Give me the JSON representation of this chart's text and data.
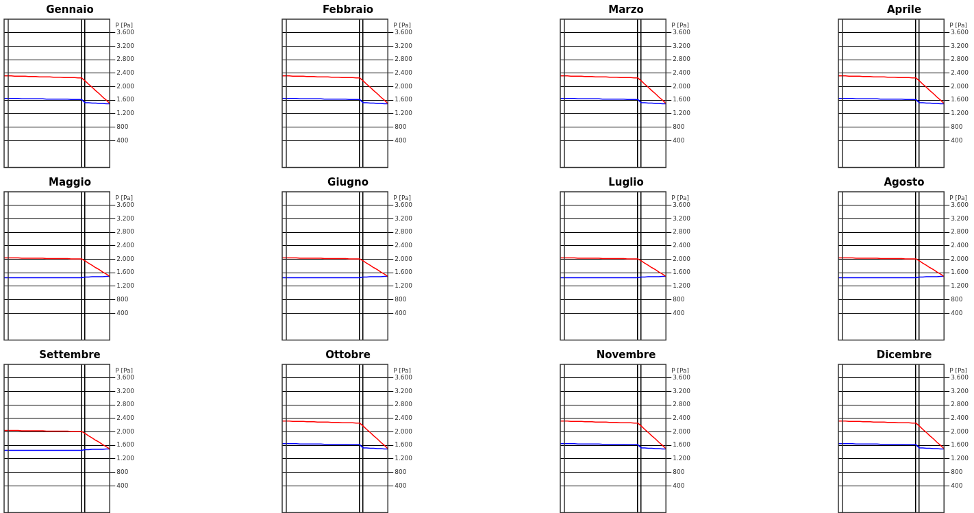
{
  "chart_data": [
    {
      "type": "line",
      "title": "Gennaio",
      "ylabel": "P [Pa]",
      "categories": [
        null,
        null,
        null,
        null,
        null,
        null,
        null,
        null,
        null,
        null,
        null,
        null,
        null,
        null,
        null,
        null,
        null,
        null,
        null,
        null,
        null,
        null,
        null,
        null,
        null,
        null,
        null,
        null,
        null,
        null,
        null
      ],
      "ylim": [
        -400,
        4000
      ],
      "yticks": [
        {
          "value": 400,
          "label": "400"
        },
        {
          "value": 800,
          "label": "800"
        },
        {
          "value": 1200,
          "label": "1.200"
        },
        {
          "value": 1600,
          "label": "1.600"
        },
        {
          "value": 2000,
          "label": "2.000"
        },
        {
          "value": 2400,
          "label": "2.400"
        },
        {
          "value": 2800,
          "label": "2.800"
        },
        {
          "value": 3200,
          "label": "3.200"
        },
        {
          "value": 3600,
          "label": "3.600"
        }
      ],
      "grid": true,
      "tick_labels": "y",
      "series": [
        {
          "color": "#ff0000",
          "values": [
            2320,
            2320,
            2320,
            2310,
            2310,
            2310,
            2310,
            2300,
            2300,
            2300,
            2290,
            2290,
            2290,
            2290,
            2280,
            2280,
            2280,
            2270,
            2270,
            2270,
            2270,
            2260,
            2260,
            2170,
            2070,
            1980,
            1880,
            1790,
            1690,
            1600,
            1500
          ]
        },
        {
          "color": "#0000ff",
          "values": [
            1650,
            1650,
            1650,
            1650,
            1650,
            1640,
            1640,
            1640,
            1640,
            1640,
            1640,
            1640,
            1630,
            1630,
            1630,
            1630,
            1630,
            1630,
            1630,
            1620,
            1620,
            1620,
            1620,
            1520,
            1520,
            1510,
            1510,
            1500,
            1500,
            1490,
            1490
          ]
        }
      ]
    },
    {
      "type": "line",
      "title": "Febbraio",
      "ylabel": "P [Pa]",
      "categories": [
        null,
        null,
        null,
        null,
        null,
        null,
        null,
        null,
        null,
        null,
        null,
        null,
        null,
        null,
        null,
        null,
        null,
        null,
        null,
        null,
        null,
        null,
        null,
        null,
        null,
        null,
        null,
        null,
        null,
        null,
        null
      ],
      "ylim": [
        -400,
        4000
      ],
      "yticks": [
        {
          "value": 400,
          "label": "400"
        },
        {
          "value": 800,
          "label": "800"
        },
        {
          "value": 1200,
          "label": "1.200"
        },
        {
          "value": 1600,
          "label": "1.600"
        },
        {
          "value": 2000,
          "label": "2.000"
        },
        {
          "value": 2400,
          "label": "2.400"
        },
        {
          "value": 2800,
          "label": "2.800"
        },
        {
          "value": 3200,
          "label": "3.200"
        },
        {
          "value": 3600,
          "label": "3.600"
        }
      ],
      "grid": true,
      "tick_labels": "y",
      "series": [
        {
          "color": "#ff0000",
          "values": [
            2320,
            2320,
            2320,
            2310,
            2310,
            2310,
            2310,
            2300,
            2300,
            2300,
            2290,
            2290,
            2290,
            2290,
            2280,
            2280,
            2280,
            2270,
            2270,
            2270,
            2270,
            2260,
            2260,
            2170,
            2070,
            1980,
            1880,
            1790,
            1690,
            1600,
            1500
          ]
        },
        {
          "color": "#0000ff",
          "values": [
            1650,
            1650,
            1650,
            1650,
            1650,
            1640,
            1640,
            1640,
            1640,
            1640,
            1640,
            1640,
            1630,
            1630,
            1630,
            1630,
            1630,
            1630,
            1630,
            1620,
            1620,
            1620,
            1620,
            1520,
            1520,
            1510,
            1510,
            1500,
            1500,
            1490,
            1490
          ]
        }
      ]
    },
    {
      "type": "line",
      "title": "Marzo",
      "ylabel": "P [Pa]",
      "categories": [
        null,
        null,
        null,
        null,
        null,
        null,
        null,
        null,
        null,
        null,
        null,
        null,
        null,
        null,
        null,
        null,
        null,
        null,
        null,
        null,
        null,
        null,
        null,
        null,
        null,
        null,
        null,
        null,
        null,
        null,
        null
      ],
      "ylim": [
        -400,
        4000
      ],
      "yticks": [
        {
          "value": 400,
          "label": "400"
        },
        {
          "value": 800,
          "label": "800"
        },
        {
          "value": 1200,
          "label": "1.200"
        },
        {
          "value": 1600,
          "label": "1.600"
        },
        {
          "value": 2000,
          "label": "2.000"
        },
        {
          "value": 2400,
          "label": "2.400"
        },
        {
          "value": 2800,
          "label": "2.800"
        },
        {
          "value": 3200,
          "label": "3.200"
        },
        {
          "value": 3600,
          "label": "3.600"
        }
      ],
      "grid": true,
      "tick_labels": "y",
      "series": [
        {
          "color": "#ff0000",
          "values": [
            2320,
            2320,
            2320,
            2310,
            2310,
            2310,
            2310,
            2300,
            2300,
            2300,
            2290,
            2290,
            2290,
            2290,
            2280,
            2280,
            2280,
            2270,
            2270,
            2270,
            2270,
            2260,
            2260,
            2170,
            2070,
            1980,
            1880,
            1790,
            1690,
            1600,
            1500
          ]
        },
        {
          "color": "#0000ff",
          "values": [
            1650,
            1650,
            1650,
            1650,
            1650,
            1640,
            1640,
            1640,
            1640,
            1640,
            1640,
            1640,
            1630,
            1630,
            1630,
            1630,
            1630,
            1630,
            1630,
            1620,
            1620,
            1620,
            1620,
            1520,
            1520,
            1510,
            1510,
            1500,
            1500,
            1490,
            1490
          ]
        }
      ]
    },
    {
      "type": "line",
      "title": "Aprile",
      "ylabel": "P [Pa]",
      "categories": [
        null,
        null,
        null,
        null,
        null,
        null,
        null,
        null,
        null,
        null,
        null,
        null,
        null,
        null,
        null,
        null,
        null,
        null,
        null,
        null,
        null,
        null,
        null,
        null,
        null,
        null,
        null,
        null,
        null,
        null,
        null
      ],
      "ylim": [
        -400,
        4000
      ],
      "yticks": [
        {
          "value": 400,
          "label": "400"
        },
        {
          "value": 800,
          "label": "800"
        },
        {
          "value": 1200,
          "label": "1.200"
        },
        {
          "value": 1600,
          "label": "1.600"
        },
        {
          "value": 2000,
          "label": "2.000"
        },
        {
          "value": 2400,
          "label": "2.400"
        },
        {
          "value": 2800,
          "label": "2.800"
        },
        {
          "value": 3200,
          "label": "3.200"
        },
        {
          "value": 3600,
          "label": "3.600"
        }
      ],
      "grid": true,
      "tick_labels": "y",
      "series": [
        {
          "color": "#ff0000",
          "values": [
            2320,
            2320,
            2320,
            2310,
            2310,
            2310,
            2310,
            2300,
            2300,
            2300,
            2290,
            2290,
            2290,
            2290,
            2280,
            2280,
            2280,
            2270,
            2270,
            2270,
            2270,
            2260,
            2260,
            2170,
            2070,
            1980,
            1880,
            1790,
            1690,
            1600,
            1500
          ]
        },
        {
          "color": "#0000ff",
          "values": [
            1650,
            1650,
            1650,
            1650,
            1650,
            1640,
            1640,
            1640,
            1640,
            1640,
            1640,
            1640,
            1630,
            1630,
            1630,
            1630,
            1630,
            1630,
            1630,
            1620,
            1620,
            1620,
            1620,
            1520,
            1520,
            1510,
            1510,
            1500,
            1500,
            1490,
            1490
          ]
        }
      ]
    },
    {
      "type": "line",
      "title": "Maggio",
      "ylabel": "P [Pa]",
      "categories": [
        null,
        null,
        null,
        null,
        null,
        null,
        null,
        null,
        null,
        null,
        null,
        null,
        null,
        null,
        null,
        null,
        null,
        null,
        null,
        null,
        null,
        null,
        null,
        null,
        null,
        null,
        null,
        null,
        null,
        null,
        null
      ],
      "ylim": [
        -400,
        4000
      ],
      "yticks": [
        {
          "value": 400,
          "label": "400"
        },
        {
          "value": 800,
          "label": "800"
        },
        {
          "value": 1200,
          "label": "1.200"
        },
        {
          "value": 1600,
          "label": "1.600"
        },
        {
          "value": 2000,
          "label": "2.000"
        },
        {
          "value": 2400,
          "label": "2.400"
        },
        {
          "value": 2800,
          "label": "2.800"
        },
        {
          "value": 3200,
          "label": "3.200"
        },
        {
          "value": 3600,
          "label": "3.600"
        }
      ],
      "grid": true,
      "tick_labels": "y",
      "series": [
        {
          "color": "#ff0000",
          "values": [
            2040,
            2040,
            2040,
            2040,
            2040,
            2030,
            2030,
            2030,
            2030,
            2030,
            2030,
            2030,
            2020,
            2020,
            2020,
            2020,
            2020,
            2020,
            2020,
            2010,
            2010,
            2010,
            2010,
            1950,
            1880,
            1820,
            1750,
            1690,
            1620,
            1560,
            1490
          ]
        },
        {
          "color": "#0000ff",
          "values": [
            1450,
            1450,
            1450,
            1450,
            1450,
            1450,
            1450,
            1450,
            1450,
            1450,
            1450,
            1450,
            1450,
            1450,
            1450,
            1450,
            1450,
            1450,
            1450,
            1450,
            1450,
            1450,
            1450,
            1470,
            1470,
            1480,
            1480,
            1480,
            1480,
            1490,
            1490
          ]
        }
      ]
    },
    {
      "type": "line",
      "title": "Giugno",
      "ylabel": "P [Pa]",
      "categories": [
        null,
        null,
        null,
        null,
        null,
        null,
        null,
        null,
        null,
        null,
        null,
        null,
        null,
        null,
        null,
        null,
        null,
        null,
        null,
        null,
        null,
        null,
        null,
        null,
        null,
        null,
        null,
        null,
        null,
        null,
        null
      ],
      "ylim": [
        -400,
        4000
      ],
      "yticks": [
        {
          "value": 400,
          "label": "400"
        },
        {
          "value": 800,
          "label": "800"
        },
        {
          "value": 1200,
          "label": "1.200"
        },
        {
          "value": 1600,
          "label": "1.600"
        },
        {
          "value": 2000,
          "label": "2.000"
        },
        {
          "value": 2400,
          "label": "2.400"
        },
        {
          "value": 2800,
          "label": "2.800"
        },
        {
          "value": 3200,
          "label": "3.200"
        },
        {
          "value": 3600,
          "label": "3.600"
        }
      ],
      "grid": true,
      "tick_labels": "y",
      "series": [
        {
          "color": "#ff0000",
          "values": [
            2040,
            2040,
            2040,
            2040,
            2040,
            2030,
            2030,
            2030,
            2030,
            2030,
            2030,
            2030,
            2020,
            2020,
            2020,
            2020,
            2020,
            2020,
            2020,
            2010,
            2010,
            2010,
            2010,
            1950,
            1880,
            1820,
            1750,
            1690,
            1620,
            1560,
            1490
          ]
        },
        {
          "color": "#0000ff",
          "values": [
            1450,
            1450,
            1450,
            1450,
            1450,
            1450,
            1450,
            1450,
            1450,
            1450,
            1450,
            1450,
            1450,
            1450,
            1450,
            1450,
            1450,
            1450,
            1450,
            1450,
            1450,
            1450,
            1450,
            1470,
            1470,
            1480,
            1480,
            1480,
            1480,
            1490,
            1490
          ]
        }
      ]
    },
    {
      "type": "line",
      "title": "Luglio",
      "ylabel": "P [Pa]",
      "categories": [
        null,
        null,
        null,
        null,
        null,
        null,
        null,
        null,
        null,
        null,
        null,
        null,
        null,
        null,
        null,
        null,
        null,
        null,
        null,
        null,
        null,
        null,
        null,
        null,
        null,
        null,
        null,
        null,
        null,
        null,
        null
      ],
      "ylim": [
        -400,
        4000
      ],
      "yticks": [
        {
          "value": 400,
          "label": "400"
        },
        {
          "value": 800,
          "label": "800"
        },
        {
          "value": 1200,
          "label": "1.200"
        },
        {
          "value": 1600,
          "label": "1.600"
        },
        {
          "value": 2000,
          "label": "2.000"
        },
        {
          "value": 2400,
          "label": "2.400"
        },
        {
          "value": 2800,
          "label": "2.800"
        },
        {
          "value": 3200,
          "label": "3.200"
        },
        {
          "value": 3600,
          "label": "3.600"
        }
      ],
      "grid": true,
      "tick_labels": "y",
      "series": [
        {
          "color": "#ff0000",
          "values": [
            2040,
            2040,
            2040,
            2040,
            2040,
            2030,
            2030,
            2030,
            2030,
            2030,
            2030,
            2030,
            2020,
            2020,
            2020,
            2020,
            2020,
            2020,
            2020,
            2010,
            2010,
            2010,
            2010,
            1950,
            1880,
            1820,
            1750,
            1690,
            1620,
            1560,
            1490
          ]
        },
        {
          "color": "#0000ff",
          "values": [
            1450,
            1450,
            1450,
            1450,
            1450,
            1450,
            1450,
            1450,
            1450,
            1450,
            1450,
            1450,
            1450,
            1450,
            1450,
            1450,
            1450,
            1450,
            1450,
            1450,
            1450,
            1450,
            1450,
            1470,
            1470,
            1480,
            1480,
            1480,
            1480,
            1490,
            1490
          ]
        }
      ]
    },
    {
      "type": "line",
      "title": "Agosto",
      "ylabel": "P [Pa]",
      "categories": [
        null,
        null,
        null,
        null,
        null,
        null,
        null,
        null,
        null,
        null,
        null,
        null,
        null,
        null,
        null,
        null,
        null,
        null,
        null,
        null,
        null,
        null,
        null,
        null,
        null,
        null,
        null,
        null,
        null,
        null,
        null
      ],
      "ylim": [
        -400,
        4000
      ],
      "yticks": [
        {
          "value": 400,
          "label": "400"
        },
        {
          "value": 800,
          "label": "800"
        },
        {
          "value": 1200,
          "label": "1.200"
        },
        {
          "value": 1600,
          "label": "1.600"
        },
        {
          "value": 2000,
          "label": "2.000"
        },
        {
          "value": 2400,
          "label": "2.400"
        },
        {
          "value": 2800,
          "label": "2.800"
        },
        {
          "value": 3200,
          "label": "3.200"
        },
        {
          "value": 3600,
          "label": "3.600"
        }
      ],
      "grid": true,
      "tick_labels": "y",
      "series": [
        {
          "color": "#ff0000",
          "values": [
            2040,
            2040,
            2040,
            2040,
            2040,
            2030,
            2030,
            2030,
            2030,
            2030,
            2030,
            2030,
            2020,
            2020,
            2020,
            2020,
            2020,
            2020,
            2020,
            2010,
            2010,
            2010,
            2010,
            1950,
            1880,
            1820,
            1750,
            1690,
            1620,
            1560,
            1490
          ]
        },
        {
          "color": "#0000ff",
          "values": [
            1450,
            1450,
            1450,
            1450,
            1450,
            1450,
            1450,
            1450,
            1450,
            1450,
            1450,
            1450,
            1450,
            1450,
            1450,
            1450,
            1450,
            1450,
            1450,
            1450,
            1450,
            1450,
            1450,
            1470,
            1470,
            1480,
            1480,
            1480,
            1480,
            1490,
            1490
          ]
        }
      ]
    },
    {
      "type": "line",
      "title": "Settembre",
      "ylabel": "P [Pa]",
      "categories": [
        null,
        null,
        null,
        null,
        null,
        null,
        null,
        null,
        null,
        null,
        null,
        null,
        null,
        null,
        null,
        null,
        null,
        null,
        null,
        null,
        null,
        null,
        null,
        null,
        null,
        null,
        null,
        null,
        null,
        null,
        null
      ],
      "ylim": [
        -400,
        4000
      ],
      "yticks": [
        {
          "value": 400,
          "label": "400"
        },
        {
          "value": 800,
          "label": "800"
        },
        {
          "value": 1200,
          "label": "1.200"
        },
        {
          "value": 1600,
          "label": "1.600"
        },
        {
          "value": 2000,
          "label": "2.000"
        },
        {
          "value": 2400,
          "label": "2.400"
        },
        {
          "value": 2800,
          "label": "2.800"
        },
        {
          "value": 3200,
          "label": "3.200"
        },
        {
          "value": 3600,
          "label": "3.600"
        }
      ],
      "grid": true,
      "tick_labels": "y",
      "series": [
        {
          "color": "#ff0000",
          "values": [
            2040,
            2040,
            2040,
            2040,
            2040,
            2030,
            2030,
            2030,
            2030,
            2030,
            2030,
            2030,
            2020,
            2020,
            2020,
            2020,
            2020,
            2020,
            2020,
            2010,
            2010,
            2010,
            2010,
            1950,
            1880,
            1820,
            1750,
            1690,
            1620,
            1560,
            1490
          ]
        },
        {
          "color": "#0000ff",
          "values": [
            1450,
            1450,
            1450,
            1450,
            1450,
            1450,
            1450,
            1450,
            1450,
            1450,
            1450,
            1450,
            1450,
            1450,
            1450,
            1450,
            1450,
            1450,
            1450,
            1450,
            1450,
            1450,
            1450,
            1470,
            1470,
            1480,
            1480,
            1480,
            1480,
            1490,
            1490
          ]
        }
      ]
    },
    {
      "type": "line",
      "title": "Ottobre",
      "ylabel": "P [Pa]",
      "categories": [
        null,
        null,
        null,
        null,
        null,
        null,
        null,
        null,
        null,
        null,
        null,
        null,
        null,
        null,
        null,
        null,
        null,
        null,
        null,
        null,
        null,
        null,
        null,
        null,
        null,
        null,
        null,
        null,
        null,
        null,
        null
      ],
      "ylim": [
        -400,
        4000
      ],
      "yticks": [
        {
          "value": 400,
          "label": "400"
        },
        {
          "value": 800,
          "label": "800"
        },
        {
          "value": 1200,
          "label": "1.200"
        },
        {
          "value": 1600,
          "label": "1.600"
        },
        {
          "value": 2000,
          "label": "2.000"
        },
        {
          "value": 2400,
          "label": "2.400"
        },
        {
          "value": 2800,
          "label": "2.800"
        },
        {
          "value": 3200,
          "label": "3.200"
        },
        {
          "value": 3600,
          "label": "3.600"
        }
      ],
      "grid": true,
      "tick_labels": "y",
      "series": [
        {
          "color": "#ff0000",
          "values": [
            2320,
            2320,
            2320,
            2310,
            2310,
            2310,
            2310,
            2300,
            2300,
            2300,
            2290,
            2290,
            2290,
            2290,
            2280,
            2280,
            2280,
            2270,
            2270,
            2270,
            2270,
            2260,
            2260,
            2170,
            2070,
            1980,
            1880,
            1790,
            1690,
            1600,
            1500
          ]
        },
        {
          "color": "#0000ff",
          "values": [
            1650,
            1650,
            1650,
            1650,
            1650,
            1640,
            1640,
            1640,
            1640,
            1640,
            1640,
            1640,
            1630,
            1630,
            1630,
            1630,
            1630,
            1630,
            1630,
            1620,
            1620,
            1620,
            1620,
            1520,
            1520,
            1510,
            1510,
            1500,
            1500,
            1490,
            1490
          ]
        }
      ]
    },
    {
      "type": "line",
      "title": "Novembre",
      "ylabel": "P [Pa]",
      "categories": [
        null,
        null,
        null,
        null,
        null,
        null,
        null,
        null,
        null,
        null,
        null,
        null,
        null,
        null,
        null,
        null,
        null,
        null,
        null,
        null,
        null,
        null,
        null,
        null,
        null,
        null,
        null,
        null,
        null,
        null,
        null
      ],
      "ylim": [
        -400,
        4000
      ],
      "yticks": [
        {
          "value": 400,
          "label": "400"
        },
        {
          "value": 800,
          "label": "800"
        },
        {
          "value": 1200,
          "label": "1.200"
        },
        {
          "value": 1600,
          "label": "1.600"
        },
        {
          "value": 2000,
          "label": "2.000"
        },
        {
          "value": 2400,
          "label": "2.400"
        },
        {
          "value": 2800,
          "label": "2.800"
        },
        {
          "value": 3200,
          "label": "3.200"
        },
        {
          "value": 3600,
          "label": "3.600"
        }
      ],
      "grid": true,
      "tick_labels": "y",
      "series": [
        {
          "color": "#ff0000",
          "values": [
            2320,
            2320,
            2320,
            2310,
            2310,
            2310,
            2310,
            2300,
            2300,
            2300,
            2290,
            2290,
            2290,
            2290,
            2280,
            2280,
            2280,
            2270,
            2270,
            2270,
            2270,
            2260,
            2260,
            2170,
            2070,
            1980,
            1880,
            1790,
            1690,
            1600,
            1500
          ]
        },
        {
          "color": "#0000ff",
          "values": [
            1650,
            1650,
            1650,
            1650,
            1650,
            1640,
            1640,
            1640,
            1640,
            1640,
            1640,
            1640,
            1630,
            1630,
            1630,
            1630,
            1630,
            1630,
            1630,
            1620,
            1620,
            1620,
            1620,
            1520,
            1520,
            1510,
            1510,
            1500,
            1500,
            1490,
            1490
          ]
        }
      ]
    },
    {
      "type": "line",
      "title": "Dicembre",
      "ylabel": "P [Pa]",
      "categories": [
        null,
        null,
        null,
        null,
        null,
        null,
        null,
        null,
        null,
        null,
        null,
        null,
        null,
        null,
        null,
        null,
        null,
        null,
        null,
        null,
        null,
        null,
        null,
        null,
        null,
        null,
        null,
        null,
        null,
        null,
        null
      ],
      "ylim": [
        -400,
        4000
      ],
      "yticks": [
        {
          "value": 400,
          "label": "400"
        },
        {
          "value": 800,
          "label": "800"
        },
        {
          "value": 1200,
          "label": "1.200"
        },
        {
          "value": 1600,
          "label": "1.600"
        },
        {
          "value": 2000,
          "label": "2.000"
        },
        {
          "value": 2400,
          "label": "2.400"
        },
        {
          "value": 2800,
          "label": "2.800"
        },
        {
          "value": 3200,
          "label": "3.200"
        },
        {
          "value": 3600,
          "label": "3.600"
        }
      ],
      "grid": true,
      "tick_labels": "y",
      "series": [
        {
          "color": "#ff0000",
          "values": [
            2320,
            2320,
            2320,
            2310,
            2310,
            2310,
            2310,
            2300,
            2300,
            2300,
            2290,
            2290,
            2290,
            2290,
            2280,
            2280,
            2280,
            2270,
            2270,
            2270,
            2270,
            2260,
            2260,
            2170,
            2070,
            1980,
            1880,
            1790,
            1690,
            1600,
            1500
          ]
        },
        {
          "color": "#0000ff",
          "values": [
            1650,
            1650,
            1650,
            1650,
            1650,
            1640,
            1640,
            1640,
            1640,
            1640,
            1640,
            1640,
            1630,
            1630,
            1630,
            1630,
            1630,
            1630,
            1630,
            1620,
            1620,
            1620,
            1620,
            1520,
            1520,
            1510,
            1510,
            1500,
            1500,
            1490,
            1490
          ]
        }
      ]
    }
  ]
}
